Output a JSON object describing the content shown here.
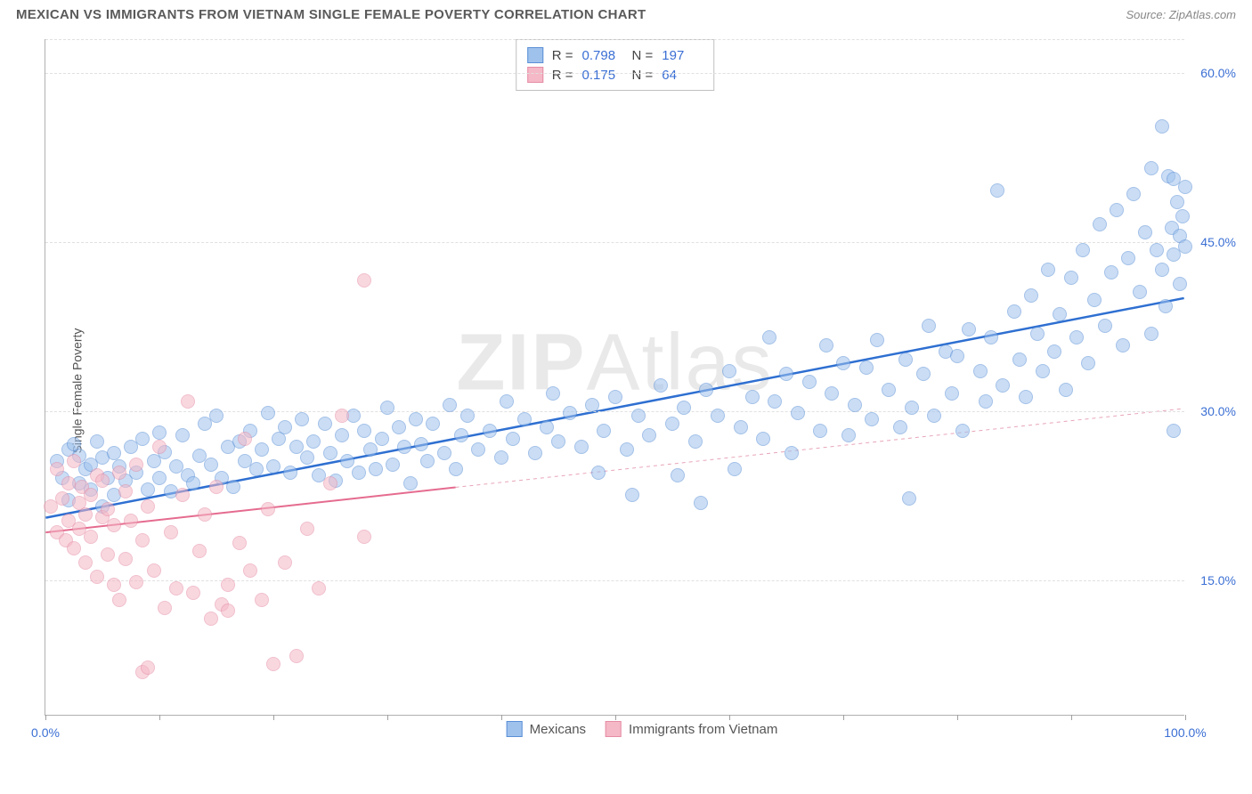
{
  "title": "MEXICAN VS IMMIGRANTS FROM VIETNAM SINGLE FEMALE POVERTY CORRELATION CHART",
  "source": "Source: ZipAtlas.com",
  "watermark": "ZIPAtlas",
  "y_axis_title": "Single Female Poverty",
  "chart": {
    "type": "scatter",
    "xlim": [
      0,
      100
    ],
    "ylim": [
      3,
      63
    ],
    "x_ticks": [
      0,
      10,
      20,
      30,
      40,
      50,
      60,
      70,
      80,
      90,
      100
    ],
    "x_tick_labels": {
      "0": "0.0%",
      "100": "100.0%"
    },
    "y_ticks": [
      15,
      30,
      45,
      60
    ],
    "y_tick_labels": {
      "15": "15.0%",
      "30": "30.0%",
      "45": "45.0%",
      "60": "60.0%"
    },
    "background_color": "#ffffff",
    "grid_color": "#e0e0e0",
    "axis_color": "#b0b0b0",
    "tick_label_color": "#3b6fd4",
    "marker_radius": 8,
    "marker_opacity": 0.55,
    "series": [
      {
        "name": "Mexicans",
        "fill_color": "#9fc2ed",
        "stroke_color": "#5a8fd6",
        "R": "0.798",
        "N": "197",
        "trend": {
          "x1": 0,
          "y1": 20.5,
          "x2": 100,
          "y2": 40.0,
          "color": "#2e6fd1",
          "width": 2.5,
          "dash": "none"
        },
        "points": [
          [
            1,
            25.5
          ],
          [
            1.5,
            24
          ],
          [
            2,
            26.5
          ],
          [
            2,
            22
          ],
          [
            2.5,
            27
          ],
          [
            3,
            23.5
          ],
          [
            3,
            26
          ],
          [
            3.5,
            24.8
          ],
          [
            4,
            23
          ],
          [
            4,
            25.2
          ],
          [
            4.5,
            27.2
          ],
          [
            5,
            21.5
          ],
          [
            5,
            25.8
          ],
          [
            5.5,
            24
          ],
          [
            6,
            26.2
          ],
          [
            6,
            22.5
          ],
          [
            6.5,
            25
          ],
          [
            7,
            23.8
          ],
          [
            7.5,
            26.8
          ],
          [
            8,
            24.5
          ],
          [
            8.5,
            27.5
          ],
          [
            9,
            23
          ],
          [
            9.5,
            25.5
          ],
          [
            10,
            28
          ],
          [
            10,
            24
          ],
          [
            10.5,
            26.3
          ],
          [
            11,
            22.8
          ],
          [
            11.5,
            25
          ],
          [
            12,
            27.8
          ],
          [
            12.5,
            24.2
          ],
          [
            13,
            23.5
          ],
          [
            13.5,
            26
          ],
          [
            14,
            28.8
          ],
          [
            14.5,
            25.2
          ],
          [
            15,
            29.5
          ],
          [
            15.5,
            24
          ],
          [
            16,
            26.8
          ],
          [
            16.5,
            23.2
          ],
          [
            17,
            27.2
          ],
          [
            17.5,
            25.5
          ],
          [
            18,
            28.2
          ],
          [
            18.5,
            24.8
          ],
          [
            19,
            26.5
          ],
          [
            19.5,
            29.8
          ],
          [
            20,
            25
          ],
          [
            20.5,
            27.5
          ],
          [
            21,
            28.5
          ],
          [
            21.5,
            24.5
          ],
          [
            22,
            26.8
          ],
          [
            22.5,
            29.2
          ],
          [
            23,
            25.8
          ],
          [
            23.5,
            27.2
          ],
          [
            24,
            24.2
          ],
          [
            24.5,
            28.8
          ],
          [
            25,
            26.2
          ],
          [
            25.5,
            23.8
          ],
          [
            26,
            27.8
          ],
          [
            26.5,
            25.5
          ],
          [
            27,
            29.5
          ],
          [
            27.5,
            24.5
          ],
          [
            28,
            28.2
          ],
          [
            28.5,
            26.5
          ],
          [
            29,
            24.8
          ],
          [
            29.5,
            27.5
          ],
          [
            30,
            30.2
          ],
          [
            30.5,
            25.2
          ],
          [
            31,
            28.5
          ],
          [
            31.5,
            26.8
          ],
          [
            32,
            23.5
          ],
          [
            32.5,
            29.2
          ],
          [
            33,
            27
          ],
          [
            33.5,
            25.5
          ],
          [
            34,
            28.8
          ],
          [
            35,
            26.2
          ],
          [
            35.5,
            30.5
          ],
          [
            36,
            24.8
          ],
          [
            36.5,
            27.8
          ],
          [
            37,
            29.5
          ],
          [
            38,
            26.5
          ],
          [
            39,
            28.2
          ],
          [
            40,
            25.8
          ],
          [
            40.5,
            30.8
          ],
          [
            41,
            27.5
          ],
          [
            42,
            29.2
          ],
          [
            43,
            26.2
          ],
          [
            44,
            28.5
          ],
          [
            44.5,
            31.5
          ],
          [
            45,
            27.2
          ],
          [
            46,
            29.8
          ],
          [
            47,
            26.8
          ],
          [
            48,
            30.5
          ],
          [
            48.5,
            24.5
          ],
          [
            49,
            28.2
          ],
          [
            50,
            31.2
          ],
          [
            51,
            26.5
          ],
          [
            51.5,
            22.5
          ],
          [
            52,
            29.5
          ],
          [
            53,
            27.8
          ],
          [
            54,
            32.2
          ],
          [
            55,
            28.8
          ],
          [
            55.5,
            24.2
          ],
          [
            56,
            30.2
          ],
          [
            57,
            27.2
          ],
          [
            57.5,
            21.8
          ],
          [
            58,
            31.8
          ],
          [
            59,
            29.5
          ],
          [
            60,
            33.5
          ],
          [
            60.5,
            24.8
          ],
          [
            61,
            28.5
          ],
          [
            62,
            31.2
          ],
          [
            63,
            27.5
          ],
          [
            63.5,
            36.5
          ],
          [
            64,
            30.8
          ],
          [
            65,
            33.2
          ],
          [
            65.5,
            26.2
          ],
          [
            66,
            29.8
          ],
          [
            67,
            32.5
          ],
          [
            68,
            28.2
          ],
          [
            68.5,
            35.8
          ],
          [
            69,
            31.5
          ],
          [
            70,
            34.2
          ],
          [
            70.5,
            27.8
          ],
          [
            71,
            30.5
          ],
          [
            72,
            33.8
          ],
          [
            72.5,
            29.2
          ],
          [
            73,
            36.2
          ],
          [
            74,
            31.8
          ],
          [
            75,
            28.5
          ],
          [
            75.5,
            34.5
          ],
          [
            75.8,
            22.2
          ],
          [
            76,
            30.2
          ],
          [
            77,
            33.2
          ],
          [
            77.5,
            37.5
          ],
          [
            78,
            29.5
          ],
          [
            79,
            35.2
          ],
          [
            79.5,
            31.5
          ],
          [
            80,
            34.8
          ],
          [
            80.5,
            28.2
          ],
          [
            81,
            37.2
          ],
          [
            82,
            33.5
          ],
          [
            82.5,
            30.8
          ],
          [
            83,
            36.5
          ],
          [
            83.5,
            49.5
          ],
          [
            84,
            32.2
          ],
          [
            85,
            38.8
          ],
          [
            85.5,
            34.5
          ],
          [
            86,
            31.2
          ],
          [
            86.5,
            40.2
          ],
          [
            87,
            36.8
          ],
          [
            87.5,
            33.5
          ],
          [
            88,
            42.5
          ],
          [
            88.5,
            35.2
          ],
          [
            89,
            38.5
          ],
          [
            89.5,
            31.8
          ],
          [
            90,
            41.8
          ],
          [
            90.5,
            36.5
          ],
          [
            91,
            44.2
          ],
          [
            91.5,
            34.2
          ],
          [
            92,
            39.8
          ],
          [
            92.5,
            46.5
          ],
          [
            93,
            37.5
          ],
          [
            93.5,
            42.2
          ],
          [
            94,
            47.8
          ],
          [
            94.5,
            35.8
          ],
          [
            95,
            43.5
          ],
          [
            95.5,
            49.2
          ],
          [
            96,
            40.5
          ],
          [
            96.5,
            45.8
          ],
          [
            97,
            51.5
          ],
          [
            97,
            36.8
          ],
          [
            97.5,
            44.2
          ],
          [
            98,
            55.2
          ],
          [
            98,
            42.5
          ],
          [
            98.3,
            39.2
          ],
          [
            98.5,
            50.8
          ],
          [
            98.8,
            46.2
          ],
          [
            99,
            50.5
          ],
          [
            99,
            43.8
          ],
          [
            99,
            28.2
          ],
          [
            99.3,
            48.5
          ],
          [
            99.5,
            45.5
          ],
          [
            99.5,
            41.2
          ],
          [
            99.8,
            47.2
          ],
          [
            100,
            49.8
          ],
          [
            100,
            44.5
          ]
        ]
      },
      {
        "name": "Immigrants from Vietnam",
        "fill_color": "#f5b8c6",
        "stroke_color": "#e58ca5",
        "R": "0.175",
        "N": "64",
        "trend": {
          "x1": 0,
          "y1": 19.2,
          "x2": 36,
          "y2": 23.2,
          "color": "#e56b8f",
          "width": 2,
          "dash": "none"
        },
        "trend_ext": {
          "x1": 36,
          "y1": 23.2,
          "x2": 100,
          "y2": 30.2,
          "color": "#e8a5b8",
          "width": 1,
          "dash": "4,4"
        },
        "points": [
          [
            0.5,
            21.5
          ],
          [
            1,
            19.2
          ],
          [
            1,
            24.8
          ],
          [
            1.5,
            22.2
          ],
          [
            1.8,
            18.5
          ],
          [
            2,
            23.5
          ],
          [
            2,
            20.2
          ],
          [
            2.5,
            25.5
          ],
          [
            2.5,
            17.8
          ],
          [
            3,
            21.8
          ],
          [
            3,
            19.5
          ],
          [
            3.2,
            23.2
          ],
          [
            3.5,
            20.8
          ],
          [
            3.5,
            16.5
          ],
          [
            4,
            22.5
          ],
          [
            4,
            18.8
          ],
          [
            4.5,
            24.2
          ],
          [
            4.5,
            15.2
          ],
          [
            5,
            20.5
          ],
          [
            5,
            23.8
          ],
          [
            5.5,
            17.2
          ],
          [
            5.5,
            21.2
          ],
          [
            6,
            14.5
          ],
          [
            6,
            19.8
          ],
          [
            6.5,
            24.5
          ],
          [
            6.5,
            13.2
          ],
          [
            7,
            22.8
          ],
          [
            7,
            16.8
          ],
          [
            7.5,
            20.2
          ],
          [
            8,
            14.8
          ],
          [
            8,
            25.2
          ],
          [
            8.5,
            6.8
          ],
          [
            8.5,
            18.5
          ],
          [
            9,
            21.5
          ],
          [
            9,
            7.2
          ],
          [
            9.5,
            15.8
          ],
          [
            10,
            26.8
          ],
          [
            10.5,
            12.5
          ],
          [
            11,
            19.2
          ],
          [
            11.5,
            14.2
          ],
          [
            12,
            22.5
          ],
          [
            12.5,
            30.8
          ],
          [
            13,
            13.8
          ],
          [
            13.5,
            17.5
          ],
          [
            14,
            20.8
          ],
          [
            14.5,
            11.5
          ],
          [
            15,
            23.2
          ],
          [
            15.5,
            12.8
          ],
          [
            16,
            14.5
          ],
          [
            16,
            12.2
          ],
          [
            17,
            18.2
          ],
          [
            17.5,
            27.5
          ],
          [
            18,
            15.8
          ],
          [
            19,
            13.2
          ],
          [
            19.5,
            21.2
          ],
          [
            20,
            7.5
          ],
          [
            21,
            16.5
          ],
          [
            22,
            8.2
          ],
          [
            23,
            19.5
          ],
          [
            24,
            14.2
          ],
          [
            25,
            23.5
          ],
          [
            26,
            29.5
          ],
          [
            28,
            18.8
          ],
          [
            28,
            41.5
          ]
        ]
      }
    ]
  },
  "bottom_legend": [
    {
      "label": "Mexicans",
      "fill": "#9fc2ed",
      "stroke": "#5a8fd6"
    },
    {
      "label": "Immigrants from Vietnam",
      "fill": "#f5b8c6",
      "stroke": "#e58ca5"
    }
  ]
}
